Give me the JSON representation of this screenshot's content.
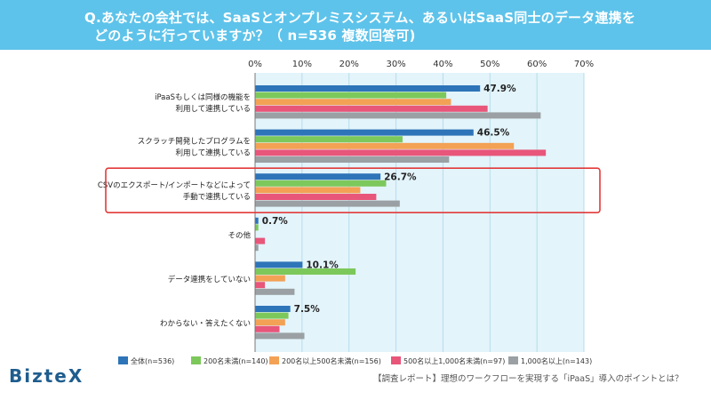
{
  "header": {
    "line1": "Q.あなたの会社では、SaaSとオンプレミスシステム、あるいはSaaS同士のデータ連携を",
    "line2": "どのように行っていますか？（ n=536 複数回答可)"
  },
  "logo": "BizteX",
  "footer": "【調査レポート】理想のワークフローを実現する「iPaaS」導入のポイントとは？",
  "colors": {
    "plot_bg": "#e3f4fb",
    "grid": "#b7dcea",
    "highlight": "#e23a3a"
  },
  "chart_data": {
    "type": "bar",
    "orientation": "horizontal",
    "xlim": [
      0,
      70
    ],
    "xticks": [
      "0%",
      "10%",
      "20%",
      "30%",
      "40%",
      "50%",
      "60%",
      "70%"
    ],
    "categories": [
      [
        "iPaaSもしくは同様の機能を",
        "利用して連携している"
      ],
      [
        "スクラッチ開発したプログラムを",
        "利用して連携している"
      ],
      [
        "CSVのエクスポート/インポートなどによって",
        "手動で連携している"
      ],
      [
        "その他"
      ],
      [
        "データ連携をしていない"
      ],
      [
        "わからない・答えたくない"
      ]
    ],
    "highlighted_category_index": 2,
    "series": [
      {
        "name": "全体(n=536)",
        "color": "#2e74b8",
        "values": [
          47.9,
          46.5,
          26.7,
          0.7,
          10.1,
          7.5
        ],
        "labels": [
          "47.9%",
          "46.5%",
          "26.7%",
          "0.7%",
          "10.1%",
          "7.5%"
        ]
      },
      {
        "name": "200名未満(n=140)",
        "color": "#7dc85b",
        "values": [
          40.7,
          31.4,
          27.9,
          0.7,
          21.4,
          7.1
        ]
      },
      {
        "name": "200名以上500名未満(n=156)",
        "color": "#f3a155",
        "values": [
          41.7,
          55.1,
          22.4,
          0.0,
          6.4,
          6.4
        ]
      },
      {
        "name": "500名以上1,000名未満(n=97)",
        "color": "#e8567a",
        "values": [
          49.5,
          61.9,
          25.8,
          2.1,
          2.1,
          5.2
        ]
      },
      {
        "name": "1,000名以上(n=143)",
        "color": "#9aa0a3",
        "values": [
          60.8,
          41.3,
          30.8,
          0.7,
          8.4,
          10.5
        ]
      }
    ]
  }
}
